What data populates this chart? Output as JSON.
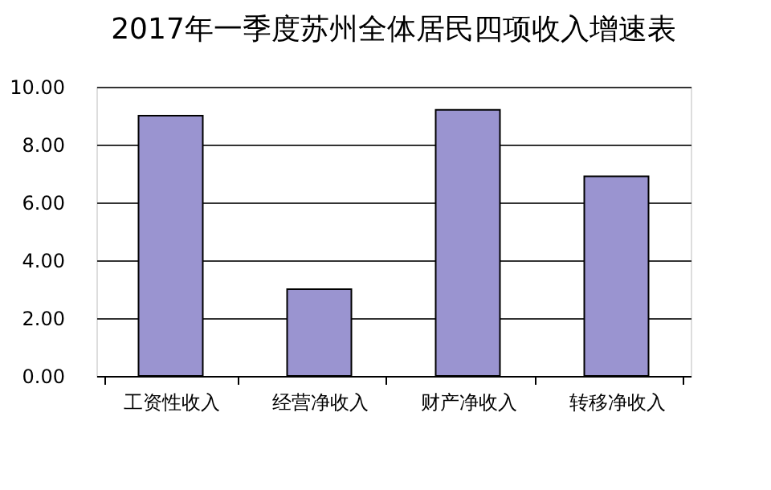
{
  "chart_data": {
    "type": "bar",
    "title": "2017年一季度苏州全体居民四项收入增速表",
    "categories": [
      "工资性收入",
      "经营净收入",
      "财产净收入",
      "转移净收入"
    ],
    "values": [
      9.0,
      3.0,
      9.2,
      6.9
    ],
    "color": "#9a94d0",
    "ylim": [
      0,
      10
    ],
    "yticks": [
      {
        "value": 0,
        "label": "0.00"
      },
      {
        "value": 2,
        "label": "2.00"
      },
      {
        "value": 4,
        "label": "4.00"
      },
      {
        "value": 6,
        "label": "6.00"
      },
      {
        "value": 8,
        "label": "8.00"
      },
      {
        "value": 10,
        "label": "10.00"
      }
    ],
    "grid": "y"
  }
}
